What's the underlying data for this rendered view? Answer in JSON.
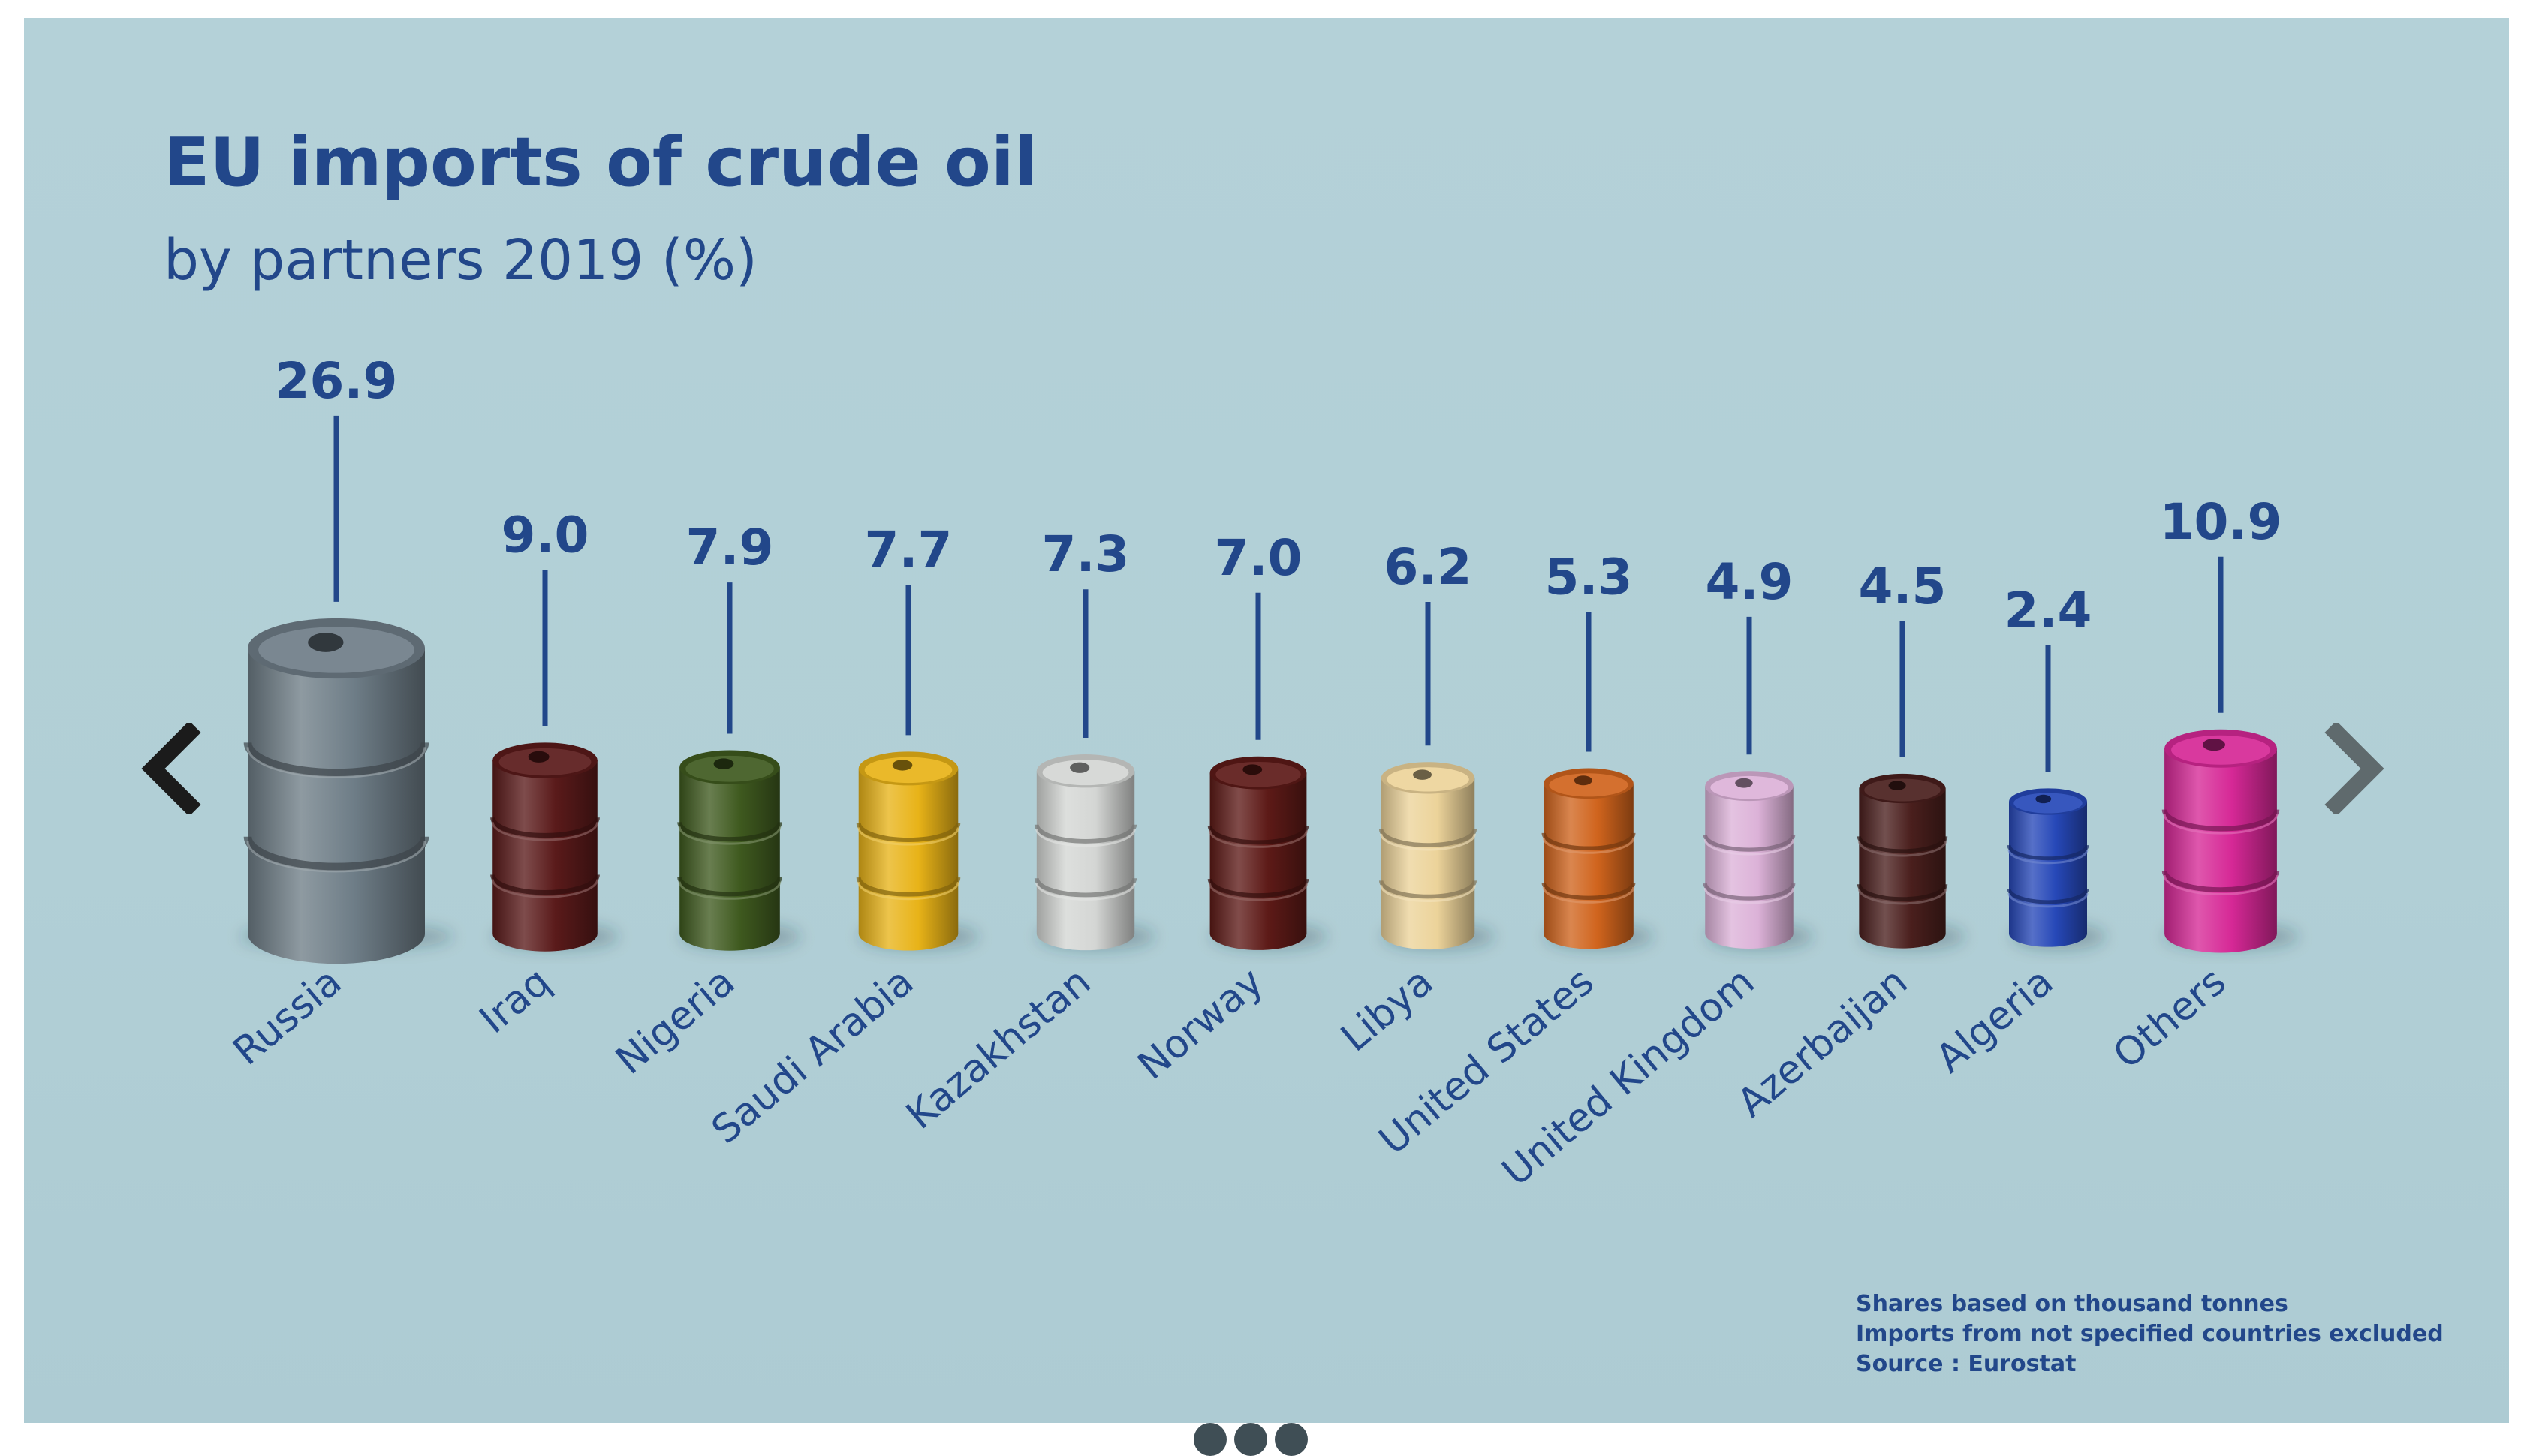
{
  "chart_data": {
    "type": "bar",
    "title": "EU imports of crude oil",
    "subtitle": "by partners 2019 (%)",
    "categories": [
      "Russia",
      "Iraq",
      "Nigeria",
      "Saudi Arabia",
      "Kazakhstan",
      "Norway",
      "Libya",
      "United States",
      "United Kingdom",
      "Azerbaijan",
      "Algeria",
      "Others"
    ],
    "values": [
      26.9,
      9.0,
      7.9,
      7.7,
      7.3,
      7.0,
      6.2,
      5.3,
      4.9,
      4.5,
      2.4,
      10.9
    ],
    "value_labels": [
      "26.9",
      "9.0",
      "7.9",
      "7.7",
      "7.3",
      "7.0",
      "6.2",
      "5.3",
      "4.9",
      "4.5",
      "2.4",
      "10.9"
    ],
    "colors": [
      "#6e7d87",
      "#5a1a1a",
      "#3f5a1f",
      "#e8b318",
      "#d4d6d4",
      "#5d1a17",
      "#ecd39a",
      "#d0641d",
      "#dcb2d8",
      "#4a1f1d",
      "#2648b8",
      "#d62896"
    ],
    "mark": "oil-barrel",
    "unit": "%"
  },
  "footnotes": [
    "Shares based on thousand tonnes",
    "Imports from not specified countries excluded",
    "Source : Eurostat"
  ],
  "controls": {
    "prev_icon": "chevron-left-icon",
    "next_icon": "chevron-right-icon",
    "pagination_dots": 3
  },
  "colors": {
    "text": "#22478a",
    "background": "#b2d0d7",
    "nav_prev": "#1b1b1b",
    "nav_next": "#5f6a6d"
  }
}
